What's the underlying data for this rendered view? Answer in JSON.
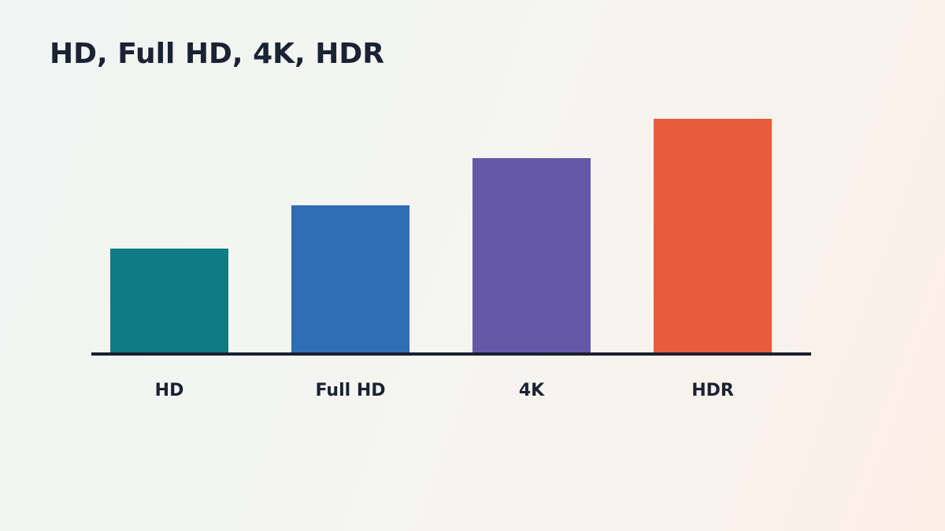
{
  "chart_data": {
    "type": "bar",
    "title": "HD, Full HD, 4K, HDR",
    "categories": [
      "HD",
      "Full HD",
      "4K",
      "HDR"
    ],
    "values": [
      133,
      188,
      248,
      298
    ],
    "colors": [
      "#0f7b82",
      "#2f6eb5",
      "#6558a8",
      "#e65c3c"
    ],
    "ylim": [
      0,
      300
    ]
  }
}
